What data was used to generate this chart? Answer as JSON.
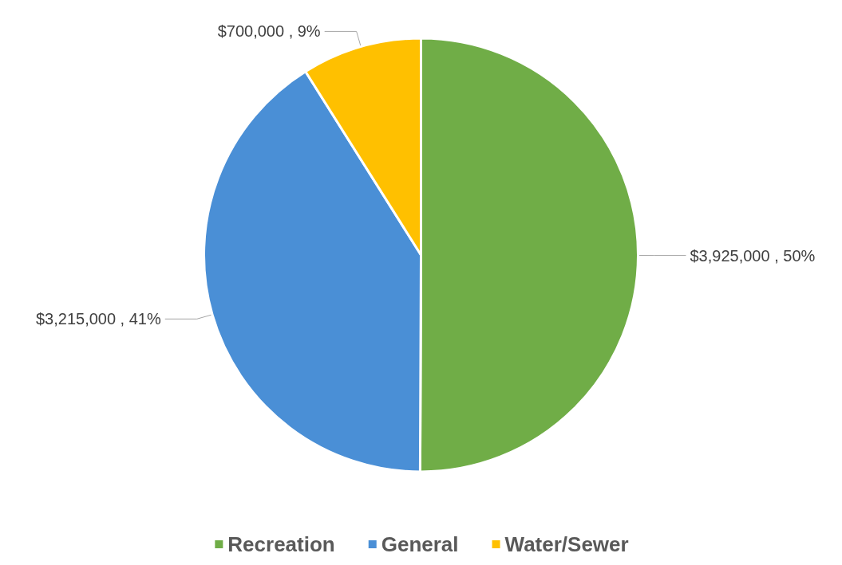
{
  "chart_data": {
    "type": "pie",
    "categories": [
      "Recreation",
      "General",
      "Water/Sewer"
    ],
    "values": [
      3925000,
      3215000,
      700000
    ],
    "colors": [
      "#70ad47",
      "#4a8fd6",
      "#ffc000"
    ],
    "value_labels": [
      "$3,925,000 , 50%",
      "$3,215,000 , 41%",
      "$700,000 , 9%"
    ],
    "legend": "bottom"
  }
}
